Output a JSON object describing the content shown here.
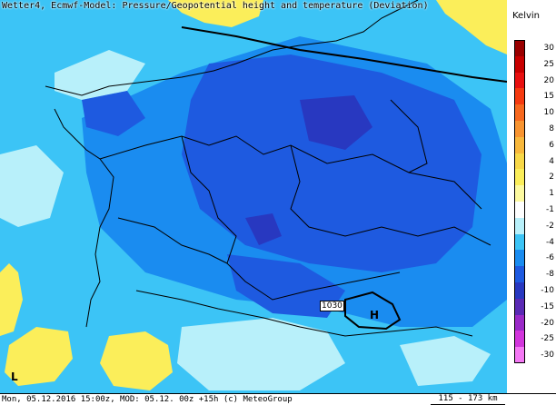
{
  "title": "Wetter4, Ecmwf-Model: Pressure/Geopotential height and temperature (Deviation)",
  "footer": {
    "info": "Mon, 05.12.2016 15:00z, MOD: 05.12. 00z +15h (c) MeteoGroup",
    "scale": "115 - 173 km"
  },
  "legend": {
    "unit": "Kelvin",
    "entries": [
      {
        "label": "30",
        "color": "#9a0000"
      },
      {
        "label": "25",
        "color": "#c80000"
      },
      {
        "label": "20",
        "color": "#e81010"
      },
      {
        "label": "15",
        "color": "#f53a10"
      },
      {
        "label": "10",
        "color": "#f7681e"
      },
      {
        "label": "8",
        "color": "#f89430"
      },
      {
        "label": "6",
        "color": "#f8b83c"
      },
      {
        "label": "4",
        "color": "#f8d848"
      },
      {
        "label": "2",
        "color": "#fbee5a"
      },
      {
        "label": "1",
        "color": "#fdfaa0"
      },
      {
        "label": "-1",
        "color": "#ffffff"
      },
      {
        "label": "-2",
        "color": "#b8f0fa"
      },
      {
        "label": "-4",
        "color": "#3cc4f6"
      },
      {
        "label": "-6",
        "color": "#1a8cf0"
      },
      {
        "label": "-8",
        "color": "#1e5ae0"
      },
      {
        "label": "-10",
        "color": "#2838c0"
      },
      {
        "label": "-15",
        "color": "#5a2ab4"
      },
      {
        "label": "-20",
        "color": "#9a2ac8"
      },
      {
        "label": "-25",
        "color": "#d236dc"
      },
      {
        "label": "-30",
        "color": "#f478f4"
      }
    ]
  },
  "map": {
    "pressure_label": "1030",
    "high_marker": "H",
    "low_marker": "L"
  }
}
